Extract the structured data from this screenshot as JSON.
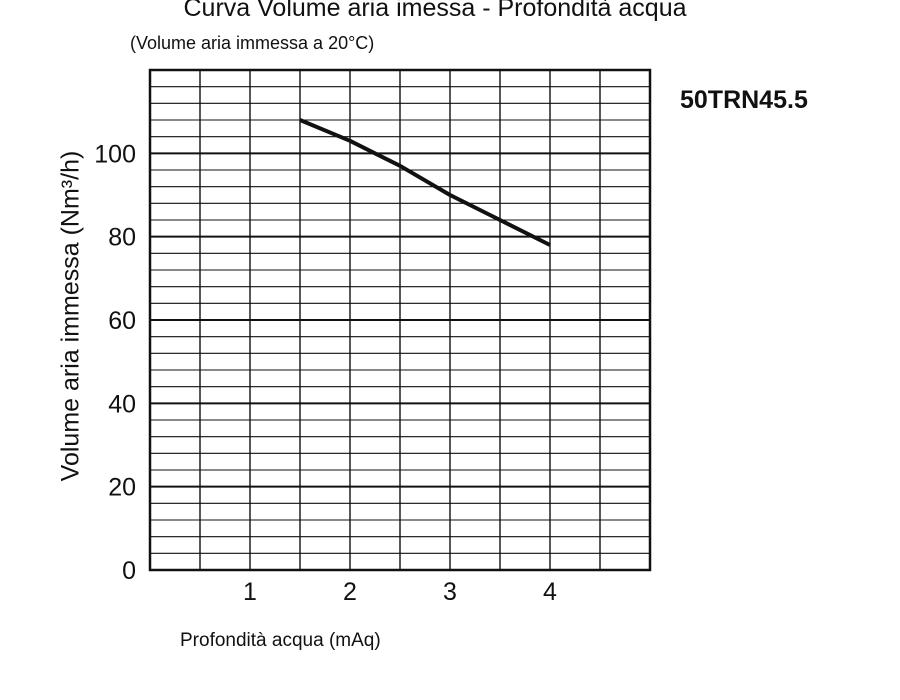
{
  "chart_data": {
    "type": "line",
    "title": "Curva Volume aria imessa - Profondità acqua",
    "subtitle": "(Volume aria immessa a 20°C)",
    "model_label": "50TRN45.5",
    "xlabel": "Profondità acqua (mAq)",
    "ylabel": "Volume aria immessa (Nm³/h)",
    "xlim": [
      0,
      5
    ],
    "ylim": [
      0,
      120
    ],
    "x_ticks": [
      1,
      2,
      3,
      4
    ],
    "y_ticks": [
      0,
      20,
      40,
      60,
      80,
      100
    ],
    "x_minor_step": 0.5,
    "y_minor_step": 4,
    "grid": true,
    "series": [
      {
        "x": [
          1.5,
          2.0,
          2.5,
          3.0,
          3.5,
          4.0
        ],
        "y": [
          108,
          103,
          97,
          90,
          84,
          78
        ]
      }
    ],
    "colors": {
      "line": "#111111",
      "grid": "#111111",
      "background": "#ffffff"
    }
  }
}
